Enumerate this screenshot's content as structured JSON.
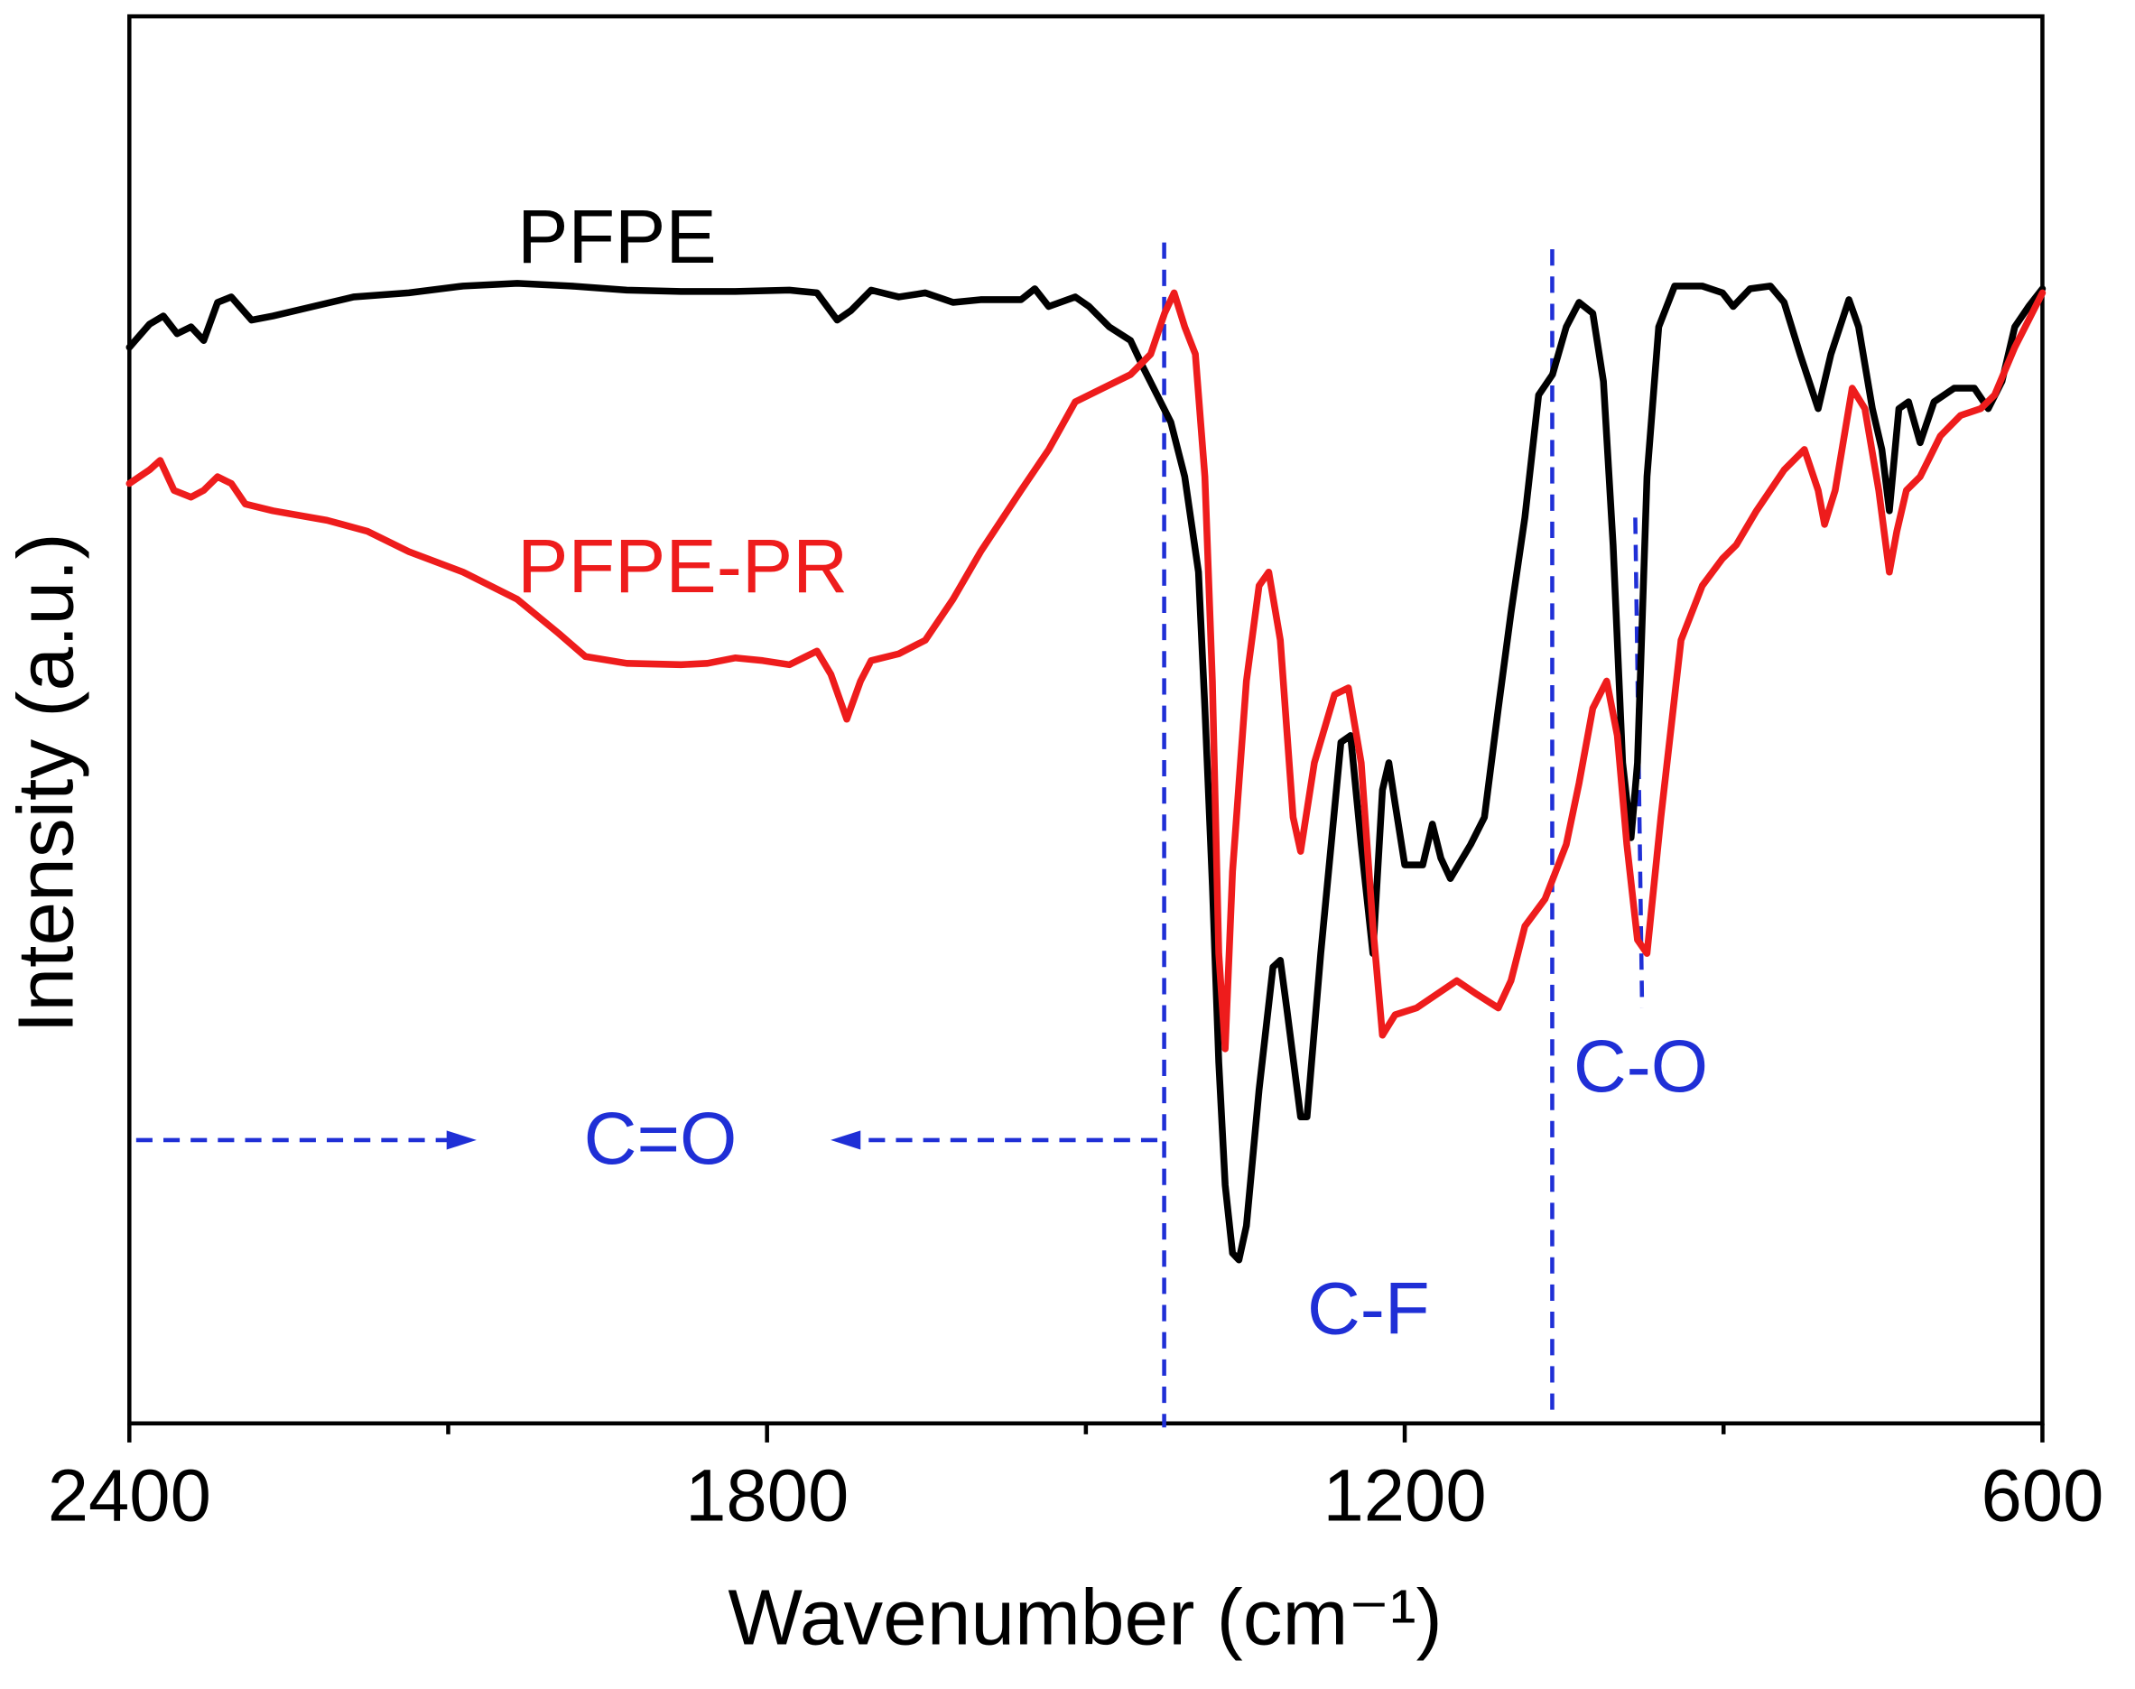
{
  "chart_data": {
    "type": "line",
    "x_label": "Wavenumber (cm⁻¹)",
    "y_label": "Intensity (a.u.)",
    "xlim": [
      2400,
      600
    ],
    "xticks": [
      2400,
      1800,
      1200,
      600
    ],
    "xminor_ticks": [
      2100,
      1500,
      900
    ],
    "ylim": [
      0,
      1033
    ],
    "annotations": [
      "C=O",
      "C-F",
      "C-O"
    ],
    "series": [
      {
        "name": "PFPE",
        "color": "#000000",
        "x": [
          2400,
          2381,
          2368,
          2355,
          2342,
          2330,
          2317,
          2304,
          2285,
          2265,
          2227,
          2189,
          2137,
          2086,
          2035,
          1984,
          1932,
          1881,
          1830,
          1779,
          1753,
          1734,
          1721,
          1702,
          1676,
          1651,
          1625,
          1599,
          1561,
          1548,
          1535,
          1510,
          1497,
          1478,
          1458,
          1446,
          1433,
          1420,
          1407,
          1394,
          1388,
          1381,
          1375,
          1369,
          1362,
          1356,
          1349,
          1337,
          1324,
          1317,
          1311,
          1298,
          1292,
          1279,
          1260,
          1251,
          1241,
          1230,
          1221,
          1215,
          1209,
          1200,
          1183,
          1174,
          1166,
          1157,
          1138,
          1125,
          1112,
          1100,
          1087,
          1074,
          1061,
          1048,
          1036,
          1023,
          1013,
          1004,
          995,
          987,
          981,
          972,
          961,
          946,
          920,
          901,
          891,
          875,
          856,
          843,
          828,
          811,
          799,
          782,
          773,
          760,
          751,
          744,
          735,
          726,
          715,
          702,
          683,
          664,
          651,
          638,
          626,
          613,
          600
        ],
        "values": [
          790,
          807,
          813,
          800,
          805,
          795,
          823,
          827,
          810,
          813,
          820,
          827,
          830,
          835,
          837,
          835,
          832,
          831,
          831,
          832,
          830,
          810,
          817,
          832,
          827,
          830,
          823,
          825,
          825,
          833,
          820,
          827,
          820,
          805,
          795,
          775,
          755,
          735,
          695,
          625,
          525,
          395,
          265,
          175,
          125,
          120,
          145,
          245,
          335,
          340,
          305,
          225,
          225,
          345,
          500,
          505,
          425,
          345,
          465,
          485,
          455,
          410,
          410,
          440,
          415,
          400,
          425,
          445,
          525,
          595,
          665,
          755,
          770,
          805,
          823,
          815,
          765,
          645,
          485,
          430,
          485,
          695,
          805,
          835,
          835,
          830,
          820,
          833,
          835,
          823,
          785,
          745,
          785,
          825,
          805,
          745,
          715,
          670,
          745,
          750,
          720,
          750,
          760,
          760,
          745,
          765,
          805,
          820,
          833
        ]
      },
      {
        "name": "PFPE-PR",
        "color": "#ee1c1c",
        "x": [
          2400,
          2381,
          2371,
          2358,
          2342,
          2330,
          2317,
          2304,
          2291,
          2265,
          2214,
          2176,
          2137,
          2086,
          2035,
          1996,
          1971,
          1932,
          1881,
          1856,
          1830,
          1804,
          1779,
          1753,
          1740,
          1725,
          1712,
          1702,
          1676,
          1651,
          1625,
          1599,
          1561,
          1535,
          1510,
          1484,
          1458,
          1439,
          1426,
          1417,
          1407,
          1397,
          1388,
          1381,
          1375,
          1369,
          1362,
          1349,
          1337,
          1328,
          1317,
          1305,
          1298,
          1285,
          1266,
          1253,
          1241,
          1230,
          1221,
          1209,
          1189,
          1170,
          1151,
          1132,
          1112,
          1100,
          1087,
          1068,
          1048,
          1036,
          1023,
          1010,
          1000,
          991,
          981,
          972,
          959,
          940,
          920,
          901,
          888,
          869,
          843,
          824,
          811,
          805,
          795,
          779,
          767,
          754,
          744,
          737,
          728,
          715,
          696,
          677,
          658,
          645,
          626,
          613,
          600
        ],
        "values": [
          690,
          700,
          707,
          685,
          680,
          685,
          695,
          690,
          675,
          670,
          663,
          655,
          640,
          625,
          605,
          580,
          563,
          558,
          557,
          558,
          562,
          560,
          557,
          567,
          550,
          517,
          545,
          560,
          565,
          575,
          605,
          640,
          685,
          715,
          750,
          760,
          770,
          785,
          815,
          830,
          805,
          785,
          695,
          545,
          345,
          275,
          405,
          545,
          615,
          625,
          575,
          445,
          420,
          485,
          535,
          540,
          485,
          365,
          285,
          300,
          305,
          315,
          325,
          315,
          305,
          325,
          365,
          385,
          425,
          470,
          525,
          545,
          505,
          425,
          355,
          345,
          445,
          575,
          615,
          635,
          645,
          670,
          700,
          715,
          685,
          660,
          685,
          760,
          745,
          685,
          625,
          655,
          685,
          695,
          725,
          740,
          745,
          755,
          790,
          810,
          830
        ]
      }
    ]
  }
}
